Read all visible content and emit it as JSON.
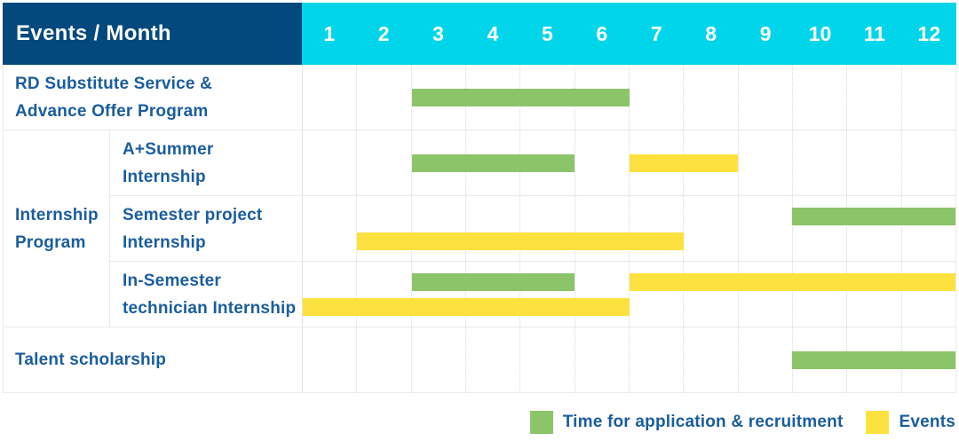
{
  "header": {
    "title": "Events / Month",
    "months": [
      "1",
      "2",
      "3",
      "4",
      "5",
      "6",
      "7",
      "8",
      "9",
      "10",
      "11",
      "12"
    ]
  },
  "colors": {
    "header_dark": "#04497e",
    "header_cyan": "#00d5ea",
    "bar_green": "#8cc469",
    "bar_yellow": "#fde23f",
    "label_text": "#1a5d9f"
  },
  "group": {
    "label": "Internship\nProgram"
  },
  "rows": [
    {
      "id": "rd-substitute-service",
      "label": "RD Substitute Service &\nAdvance Offer Program",
      "bars": [
        {
          "color": "green",
          "start": 3,
          "end": 7,
          "line": 0
        }
      ]
    },
    {
      "id": "a-plus-summer-internship",
      "label": "A+Summer\nInternship",
      "bars": [
        {
          "color": "green",
          "start": 3,
          "end": 6,
          "line": 0
        },
        {
          "color": "yellow",
          "start": 7,
          "end": 9,
          "line": 0
        }
      ]
    },
    {
      "id": "semester-project-internship",
      "label": "Semester project\nInternship",
      "bars": [
        {
          "color": "green",
          "start": 10,
          "end": 13,
          "line": 0
        },
        {
          "color": "yellow",
          "start": 2,
          "end": 8,
          "line": 1
        }
      ]
    },
    {
      "id": "in-semester-technician-internship",
      "label": "In-Semester\ntechnician Internship",
      "bars": [
        {
          "color": "green",
          "start": 3,
          "end": 6,
          "line": 0
        },
        {
          "color": "yellow",
          "start": 7,
          "end": 13,
          "line": 0
        },
        {
          "color": "yellow",
          "start": 1,
          "end": 7,
          "line": 1
        }
      ]
    },
    {
      "id": "talent-scholarship",
      "label": "Talent scholarship",
      "bars": [
        {
          "color": "green",
          "start": 10,
          "end": 13,
          "line": 0
        }
      ]
    }
  ],
  "legend": [
    {
      "color": "green",
      "label": "Time for application & recruitment"
    },
    {
      "color": "yellow",
      "label": "Events"
    }
  ],
  "chart_data": {
    "type": "bar",
    "subtype": "gantt",
    "title": "Events / Month",
    "x_months": [
      1,
      2,
      3,
      4,
      5,
      6,
      7,
      8,
      9,
      10,
      11,
      12
    ],
    "legend": [
      "Time for application & recruitment",
      "Events"
    ],
    "rows": [
      {
        "event": "RD Substitute Service & Advance Offer Program",
        "group": null,
        "application_recruitment_months": [
          [
            3,
            6
          ]
        ],
        "events_months": []
      },
      {
        "event": "A+Summer Internship",
        "group": "Internship Program",
        "application_recruitment_months": [
          [
            3,
            5
          ]
        ],
        "events_months": [
          [
            7,
            8
          ]
        ]
      },
      {
        "event": "Semester project Internship",
        "group": "Internship Program",
        "application_recruitment_months": [
          [
            10,
            12
          ]
        ],
        "events_months": [
          [
            2,
            7
          ]
        ]
      },
      {
        "event": "In-Semester technician Internship",
        "group": "Internship Program",
        "application_recruitment_months": [
          [
            3,
            5
          ]
        ],
        "events_months": [
          [
            7,
            12
          ],
          [
            1,
            6
          ]
        ]
      },
      {
        "event": "Talent scholarship",
        "group": null,
        "application_recruitment_months": [
          [
            10,
            12
          ]
        ],
        "events_months": []
      }
    ]
  }
}
